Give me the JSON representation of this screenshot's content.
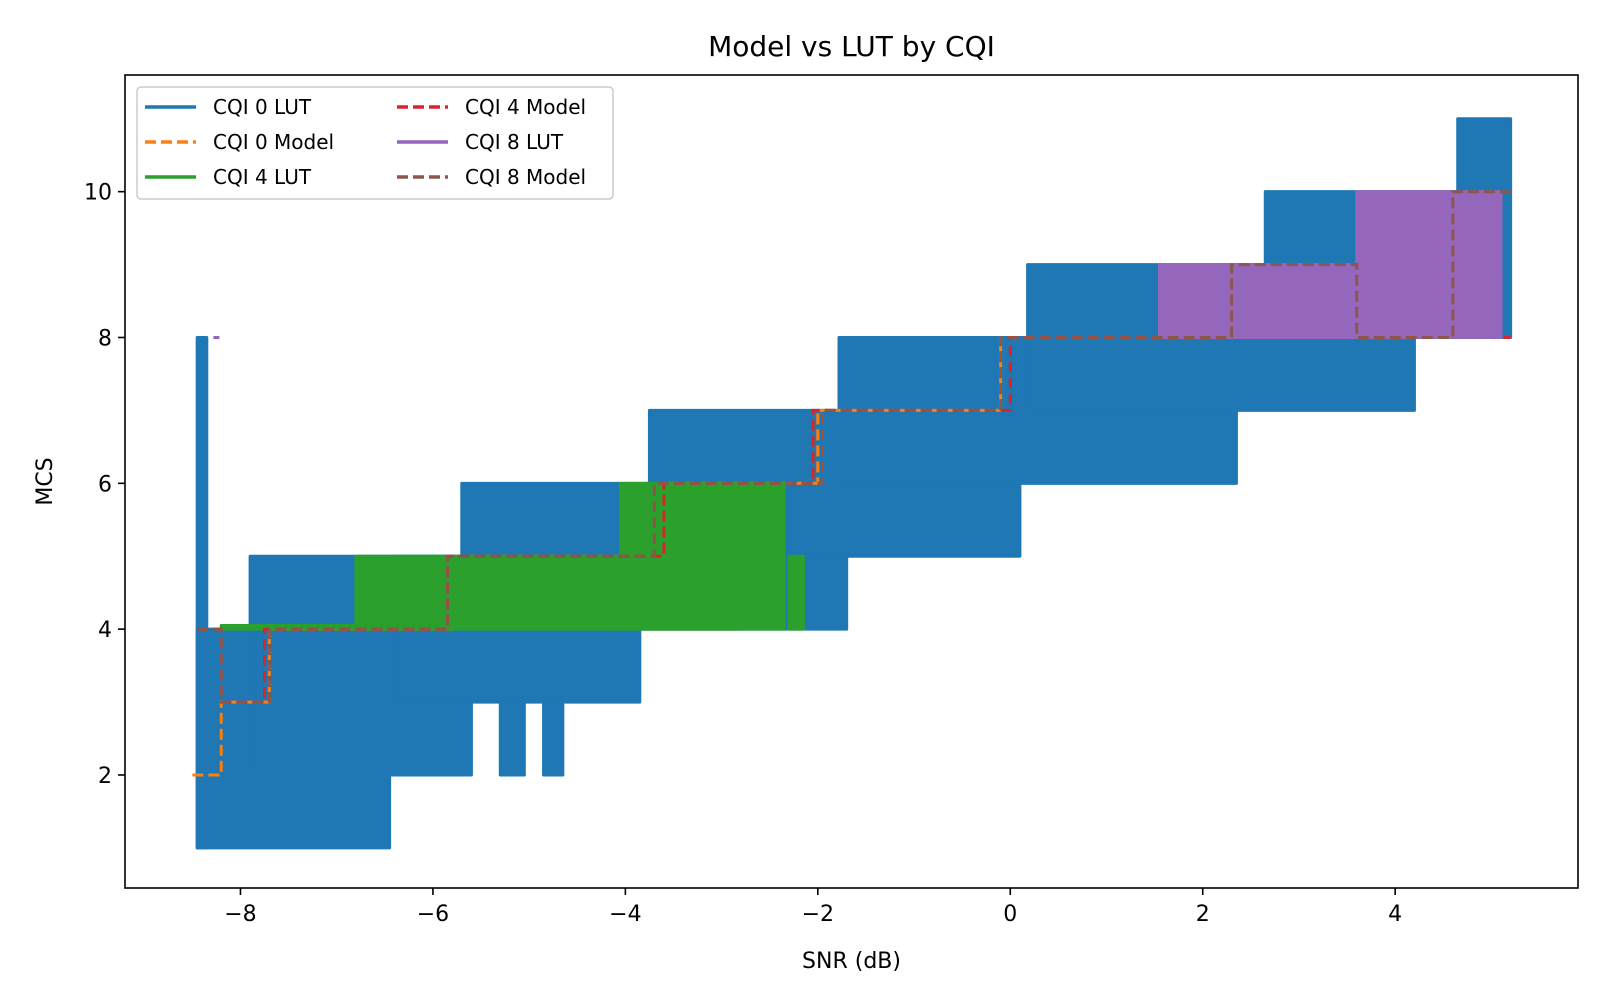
{
  "chart_data": {
    "type": "line",
    "title": "Model vs LUT by CQI",
    "xlabel": "SNR (dB)",
    "ylabel": "MCS",
    "xlim": [
      -9.2,
      5.9
    ],
    "ylim": [
      0.45,
      11.6
    ],
    "xticks": [
      -8,
      -6,
      -4,
      -2,
      0,
      2,
      4
    ],
    "xtick_labels": [
      "−8",
      "−6",
      "−4",
      "−2",
      "0",
      "2",
      "4"
    ],
    "yticks": [
      2,
      4,
      6,
      8,
      10
    ],
    "ytick_labels": [
      "2",
      "4",
      "6",
      "8",
      "10"
    ],
    "grid": false,
    "legend_position": "top-left",
    "legend_columns": 2,
    "series": [
      {
        "name": "CQI 0 LUT",
        "color": "#1f77b4",
        "style": "solid",
        "bands": [
          {
            "x": [
              -8.45,
              -8.35
            ],
            "y": [
              1,
              8
            ]
          },
          {
            "x": [
              -8.45,
              -6.45
            ],
            "y": [
              1,
              4
            ]
          },
          {
            "x": [
              -7.9,
              -5.6
            ],
            "y": [
              2,
              5
            ]
          },
          {
            "x": [
              -6.4,
              -3.85
            ],
            "y": [
              3,
              5
            ]
          },
          {
            "x": [
              -5.3,
              -5.05
            ],
            "y": [
              2,
              3
            ]
          },
          {
            "x": [
              -4.85,
              -4.65
            ],
            "y": [
              2,
              3
            ]
          },
          {
            "x": [
              -5.7,
              -1.7
            ],
            "y": [
              4,
              6
            ]
          },
          {
            "x": [
              -3.75,
              0.1
            ],
            "y": [
              5,
              7
            ]
          },
          {
            "x": [
              -1.78,
              2.35
            ],
            "y": [
              6,
              8
            ]
          },
          {
            "x": [
              0.18,
              4.2
            ],
            "y": [
              7,
              9
            ]
          },
          {
            "x": [
              2.65,
              5.2
            ],
            "y": [
              8,
              10
            ]
          },
          {
            "x": [
              4.65,
              5.2
            ],
            "y": [
              10,
              11
            ]
          }
        ]
      },
      {
        "name": "CQI 0 Model",
        "color": "#ff7f0e",
        "style": "dashed",
        "x": [
          -8.5,
          -8.2,
          -8.2,
          -7.7,
          -7.7,
          -5.8,
          -5.8,
          -3.6,
          -3.6,
          -2.0,
          -2.0,
          -0.1,
          -0.1
        ],
        "y": [
          2,
          2,
          3,
          3,
          4,
          4,
          5,
          5,
          6,
          6,
          7,
          7,
          8
        ]
      },
      {
        "name": "CQI 4 LUT",
        "color": "#2ca02c",
        "style": "solid",
        "bands": [
          {
            "x": [
              -8.2,
              -5.8
            ],
            "y": [
              4,
              4.05
            ]
          },
          {
            "x": [
              -6.8,
              -2.85
            ],
            "y": [
              4,
              5
            ]
          },
          {
            "x": [
              -4.05,
              -2.35
            ],
            "y": [
              4,
              6
            ]
          },
          {
            "x": [
              -2.3,
              -2.15
            ],
            "y": [
              4,
              5
            ]
          }
        ]
      },
      {
        "name": "CQI 4 Model",
        "color": "#d62728",
        "style": "dashed",
        "x": [
          -8.45,
          -8.2,
          -8.2,
          -7.75,
          -7.75,
          -5.85,
          -5.85,
          -3.6,
          -3.6,
          -2.05,
          -2.05,
          0.0,
          0.0,
          5.2
        ],
        "y": [
          4,
          4,
          3,
          3,
          4,
          4,
          5,
          5,
          6,
          6,
          7,
          7,
          8,
          8
        ]
      },
      {
        "name": "CQI 8 LUT",
        "color": "#9467bd",
        "style": "solid",
        "bands": [
          {
            "x": [
              1.55,
              5.1
            ],
            "y": [
              8,
              9
            ]
          },
          {
            "x": [
              3.6,
              5.1
            ],
            "y": [
              8,
              10
            ]
          }
        ],
        "points": [
          {
            "x": -8.25,
            "y": 8
          }
        ]
      },
      {
        "name": "CQI 8 Model",
        "color": "#8c564b",
        "style": "dashed",
        "x": [
          -8.45,
          -8.2,
          -8.2,
          -7.7,
          -7.7,
          -5.85,
          -5.85,
          -3.7,
          -3.7,
          -1.95,
          -1.95,
          -0.1,
          -0.1,
          2.3,
          2.3,
          3.6,
          3.6,
          4.6,
          4.6,
          5.2
        ],
        "y": [
          4,
          4,
          3,
          3,
          4,
          4,
          5,
          5,
          6,
          6,
          7,
          7,
          8,
          8,
          9,
          9,
          8,
          8,
          10,
          10
        ]
      }
    ]
  }
}
